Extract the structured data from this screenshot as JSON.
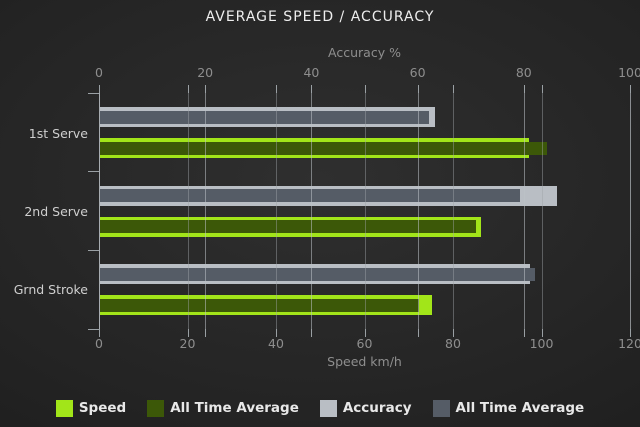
{
  "title": "AVERAGE SPEED / ACCURACY",
  "chart_data": {
    "type": "bar",
    "orientation": "horizontal",
    "categories": [
      "1st Serve",
      "2nd Serve",
      "Grnd Stroke"
    ],
    "series": [
      {
        "name": "Speed",
        "axis": "speed",
        "color": "#a2e519",
        "values": [
          97,
          86,
          75
        ]
      },
      {
        "name": "All Time Average",
        "axis": "speed",
        "color": "#3c5808",
        "values": [
          101,
          85,
          72
        ]
      },
      {
        "name": "Accuracy",
        "axis": "accuracy",
        "color": "#b9bec4",
        "values": [
          63,
          86,
          81
        ]
      },
      {
        "name": "All Time Average",
        "axis": "accuracy",
        "color": "#555c66",
        "values": [
          62,
          79,
          82
        ]
      }
    ],
    "axes": {
      "top": {
        "label": "Accuracy %",
        "min": 0,
        "max": 100,
        "ticks": [
          0,
          20,
          40,
          60,
          80,
          100
        ]
      },
      "bottom": {
        "label": "Speed km/h",
        "min": 0,
        "max": 120,
        "ticks": [
          0,
          20,
          40,
          60,
          80,
          100,
          120
        ]
      }
    },
    "legend": [
      "Speed",
      "All Time Average",
      "Accuracy",
      "All Time Average"
    ],
    "legend_position": "bottom",
    "grid": true,
    "gridlines_over_bars": true
  },
  "colors": {
    "background_center": "#2f2f2f",
    "background_edge": "#161616",
    "speed": "#a2e519",
    "speed_all_time_average": "#3c5808",
    "accuracy": "#b9bec4",
    "accuracy_all_time_average": "#555c66",
    "gridline": "#b9bec4",
    "text_title": "#ededed",
    "text_muted": "#8e8e8e",
    "text_category": "#cfcfcf",
    "text_legend": "#e8e8e8"
  }
}
